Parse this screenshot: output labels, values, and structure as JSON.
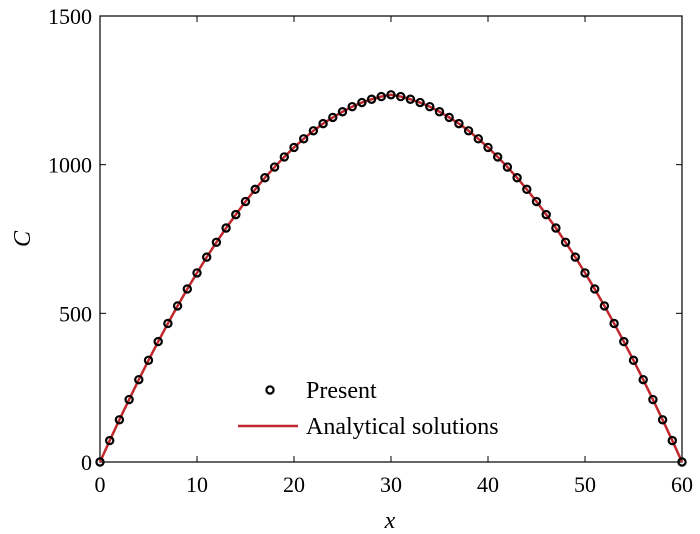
{
  "chart_data": {
    "type": "line",
    "title": "",
    "xlabel": "x",
    "ylabel": "C",
    "xlim": [
      0,
      60
    ],
    "ylim": [
      0,
      1500
    ],
    "xticks": [
      0,
      10,
      20,
      30,
      40,
      50,
      60
    ],
    "yticks": [
      0,
      500,
      1000,
      1500
    ],
    "xtick_labels": [
      "0",
      "10",
      "20",
      "30",
      "40",
      "50",
      "60"
    ],
    "ytick_labels": [
      "0",
      "500",
      "1000",
      "1500"
    ],
    "grid": false,
    "legend_position": "bottom-center",
    "series": [
      {
        "name": "Present",
        "style": "markers",
        "color": "#000000",
        "x": [
          0,
          1,
          2,
          3,
          4,
          5,
          6,
          7,
          8,
          9,
          10,
          11,
          12,
          13,
          14,
          15,
          16,
          17,
          18,
          19,
          20,
          21,
          22,
          23,
          24,
          25,
          26,
          27,
          28,
          29,
          30,
          31,
          32,
          33,
          34,
          35,
          36,
          37,
          38,
          39,
          40,
          41,
          42,
          43,
          44,
          45,
          46,
          47,
          48,
          49,
          50,
          51,
          52,
          53,
          54,
          55,
          56,
          57,
          58,
          59,
          60
        ],
        "y": [
          0,
          72,
          142,
          210,
          277,
          342,
          405,
          466,
          525,
          582,
          636,
          689,
          739,
          787,
          832,
          876,
          917,
          956,
          992,
          1026,
          1058,
          1087,
          1114,
          1138,
          1159,
          1178,
          1195,
          1209,
          1220,
          1229,
          1235,
          1229,
          1220,
          1209,
          1195,
          1178,
          1159,
          1138,
          1114,
          1087,
          1058,
          1026,
          992,
          956,
          917,
          876,
          832,
          787,
          739,
          689,
          636,
          582,
          525,
          466,
          405,
          342,
          277,
          210,
          142,
          72,
          0
        ]
      },
      {
        "name": "Analytical solutions",
        "style": "line",
        "color": "#c0282d",
        "x": [
          0,
          1,
          2,
          3,
          4,
          5,
          6,
          7,
          8,
          9,
          10,
          11,
          12,
          13,
          14,
          15,
          16,
          17,
          18,
          19,
          20,
          21,
          22,
          23,
          24,
          25,
          26,
          27,
          28,
          29,
          30,
          31,
          32,
          33,
          34,
          35,
          36,
          37,
          38,
          39,
          40,
          41,
          42,
          43,
          44,
          45,
          46,
          47,
          48,
          49,
          50,
          51,
          52,
          53,
          54,
          55,
          56,
          57,
          58,
          59,
          60
        ],
        "y": [
          0,
          72,
          142,
          210,
          277,
          342,
          405,
          466,
          525,
          582,
          636,
          689,
          739,
          787,
          832,
          876,
          917,
          956,
          992,
          1026,
          1058,
          1087,
          1114,
          1138,
          1159,
          1178,
          1195,
          1209,
          1220,
          1229,
          1235,
          1229,
          1220,
          1209,
          1195,
          1178,
          1159,
          1138,
          1114,
          1087,
          1058,
          1026,
          992,
          956,
          917,
          876,
          832,
          787,
          739,
          689,
          636,
          582,
          525,
          466,
          405,
          342,
          277,
          210,
          142,
          72,
          0
        ]
      }
    ]
  }
}
